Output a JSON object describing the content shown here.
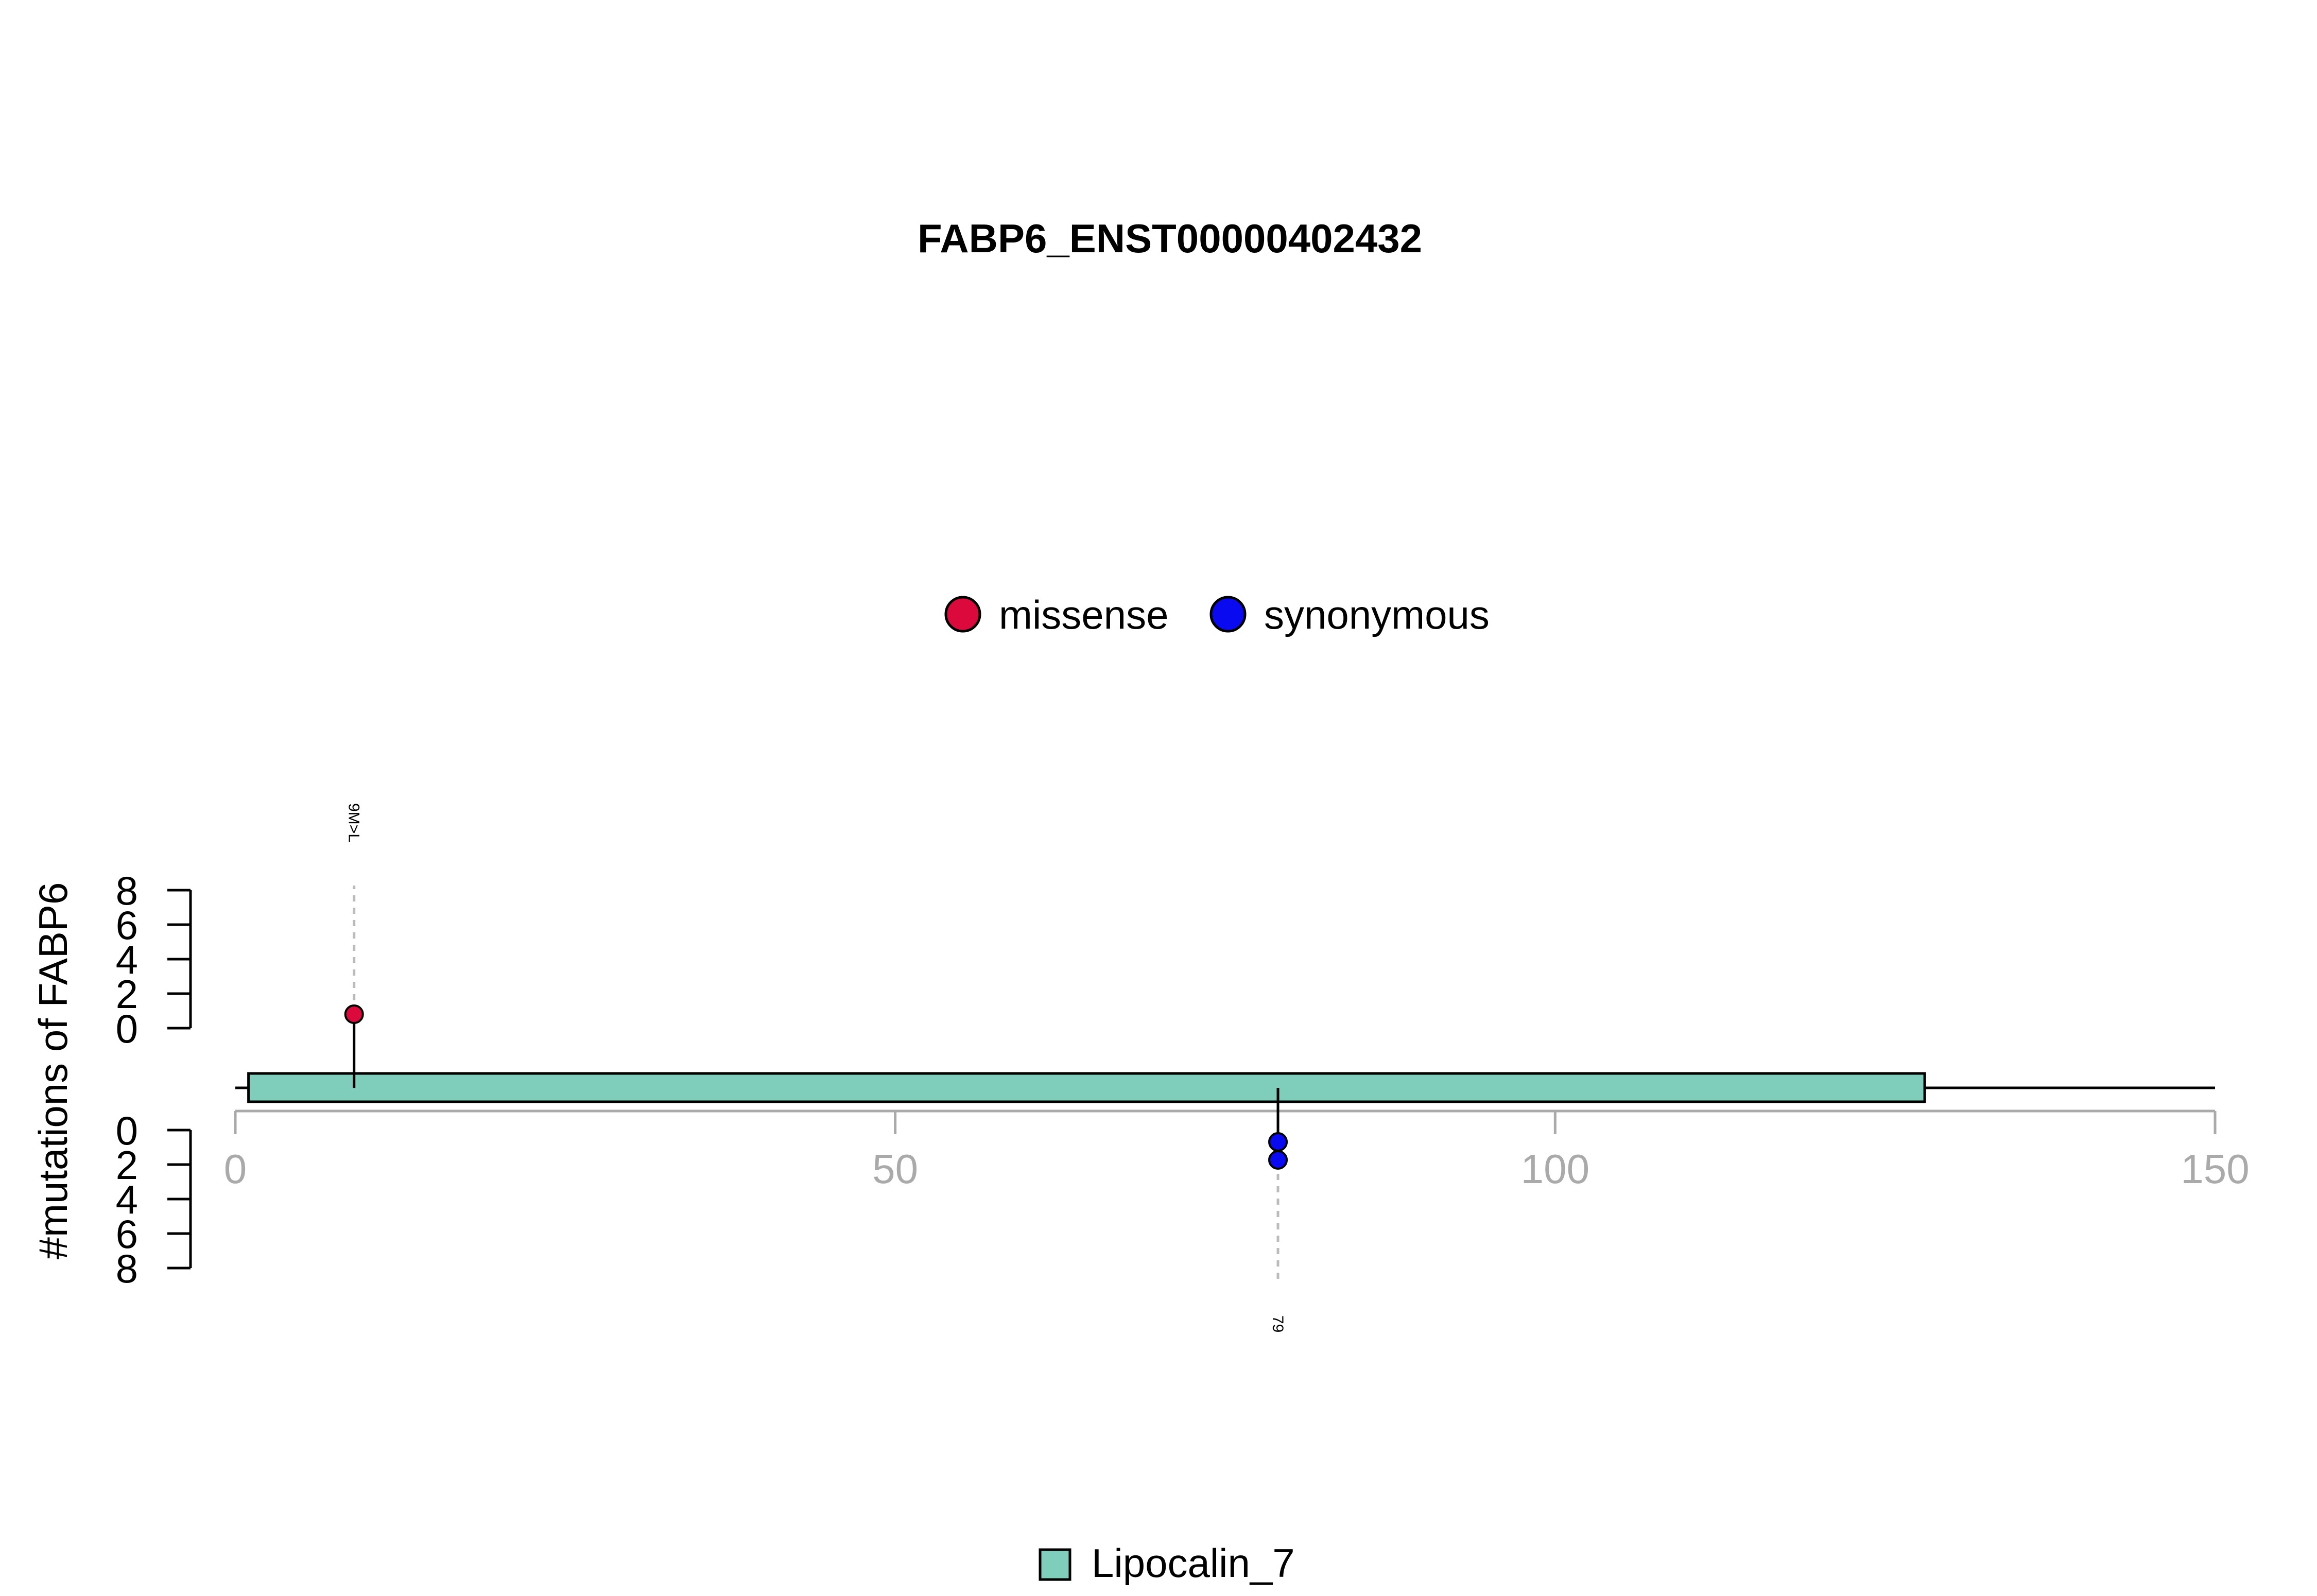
{
  "chart_data": {
    "type": "lollipop",
    "title": "FABP6_ENST00000402432",
    "ylabel": "#mutations of FABP6",
    "x": {
      "min": 0,
      "max": 150,
      "ticks": [
        0,
        50,
        100,
        150
      ]
    },
    "y_top": {
      "ticks": [
        0,
        2,
        4,
        6,
        8
      ]
    },
    "y_bottom": {
      "ticks": [
        0,
        2,
        4,
        6,
        8
      ]
    },
    "protein_length": 150,
    "legend": [
      {
        "name": "missense",
        "color": "#DC0A3C"
      },
      {
        "name": "synonymous",
        "color": "#0A0AF0"
      }
    ],
    "domain_legend": [
      {
        "name": "Lipocalin_7",
        "color": "#7FCDBB"
      }
    ],
    "domains": [
      {
        "name": "Lipocalin_7",
        "start": 1,
        "end": 128,
        "color": "#7FCDBB"
      }
    ],
    "mutations": [
      {
        "position": 9,
        "side": "top",
        "count": 1,
        "type": "missense",
        "label": "9M>L",
        "color": "#DC0A3C"
      },
      {
        "position": 79,
        "side": "bottom",
        "count": 2,
        "type": "synonymous",
        "label": "79",
        "color": "#0A0AF0"
      }
    ]
  }
}
